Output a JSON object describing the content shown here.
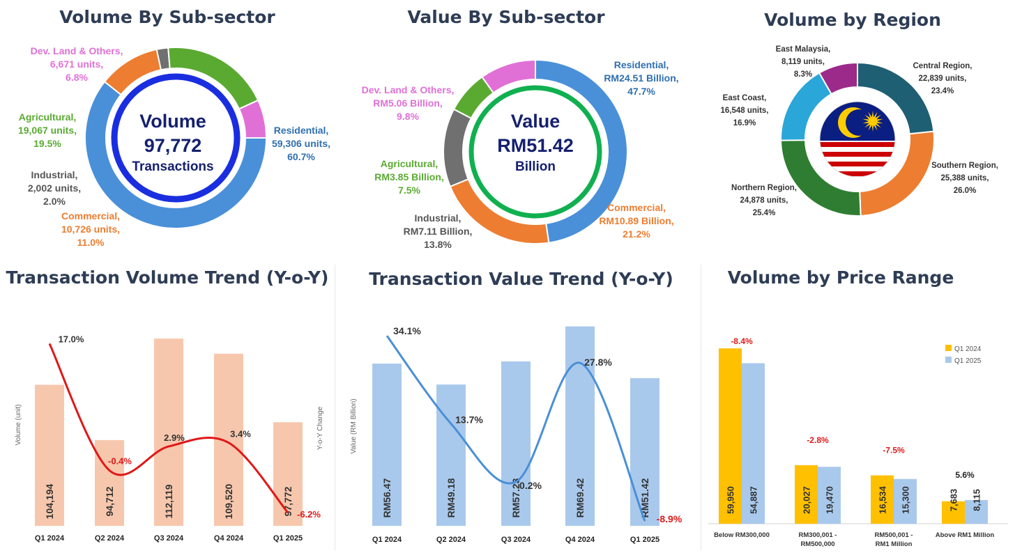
{
  "colors": {
    "title": "#2e3d55",
    "residential": "#4a90d9",
    "commercial": "#ed7d31",
    "industrial": "#707070",
    "agricultural": "#5aaa32",
    "devland": "#e070d6",
    "residential_text": "#2f6fb0",
    "volume_bar": "#f7c7ad",
    "volume_line": "#e01818",
    "value_bar": "#a9c9ec",
    "value_line": "#4a8fd6",
    "q1_2024": "#ffc000",
    "q1_2025": "#a9c9ec",
    "negative": "#e01818",
    "central": "#1f5f73",
    "southern": "#ed7d31",
    "northern": "#2f7d32",
    "east_coast": "#2aa6d9",
    "east_malaysia": "#9c2a8a"
  },
  "chart_data": [
    {
      "id": "volume_by_subsector",
      "type": "pie",
      "title": "Volume By Sub-sector",
      "center": {
        "line1": "Volume",
        "line2": "97,772",
        "line3": "Transactions"
      },
      "slices": [
        {
          "name": "Residential,",
          "value": 59306,
          "value_label": "59,306 units,",
          "pct": "60.7%"
        },
        {
          "name": "Commercial,",
          "value": 10726,
          "value_label": "10,726 units,",
          "pct": "11.0%"
        },
        {
          "name": "Industrial,",
          "value": 2002,
          "value_label": "2,002 units,",
          "pct": "2.0%"
        },
        {
          "name": "Agricultural,",
          "value": 19067,
          "value_label": "19,067 units,",
          "pct": "19.5%"
        },
        {
          "name": "Dev. Land & Others,",
          "value": 6671,
          "value_label": "6,671 units,",
          "pct": "6.8%"
        }
      ]
    },
    {
      "id": "value_by_subsector",
      "type": "pie",
      "title": "Value By Sub-sector",
      "center": {
        "line1": "Value",
        "line2": "RM51.42",
        "line3": "Billion"
      },
      "slices": [
        {
          "name": "Residential,",
          "value": 24.51,
          "value_label": "RM24.51 Billion,",
          "pct": "47.7%"
        },
        {
          "name": "Commercial,",
          "value": 10.89,
          "value_label": "RM10.89 Billion,",
          "pct": "21.2%"
        },
        {
          "name": "Industrial,",
          "value": 7.11,
          "value_label": "RM7.11 Billion,",
          "pct": "13.8%"
        },
        {
          "name": "Agricultural,",
          "value": 3.85,
          "value_label": "RM3.85 Billion,",
          "pct": "7.5%"
        },
        {
          "name": "Dev. Land & Others,",
          "value": 5.06,
          "value_label": "RM5.06 Billion,",
          "pct": "9.8%"
        }
      ]
    },
    {
      "id": "volume_by_region",
      "type": "pie",
      "title": "Volume by Region",
      "slices": [
        {
          "name": "Central Region,",
          "value": 22839,
          "value_label": "22,839 units,",
          "pct": "23.4%"
        },
        {
          "name": "Southern Region,",
          "value": 25388,
          "value_label": "25,388 units,",
          "pct": "26.0%"
        },
        {
          "name": "Northern Region,",
          "value": 24878,
          "value_label": "24,878 units,",
          "pct": "25.4%"
        },
        {
          "name": "East Coast,",
          "value": 16548,
          "value_label": "16,548 units,",
          "pct": "16.9%"
        },
        {
          "name": "East Malaysia,",
          "value": 8119,
          "value_label": "8,119 units,",
          "pct": "8.3%"
        }
      ]
    },
    {
      "id": "transaction_volume_trend",
      "type": "bar",
      "title": "Transaction Volume Trend (Y-o-Y)",
      "ylabel": "Volume (unit)",
      "y2label": "Y-o-Y Change",
      "categories": [
        "Q1 2024",
        "Q2 2024",
        "Q3 2024",
        "Q4 2024",
        "Q1 2025"
      ],
      "values": [
        104194,
        94712,
        112119,
        109520,
        97772
      ],
      "value_labels": [
        "104,194",
        "94,712",
        "112,119",
        "109,520",
        "97,772"
      ],
      "ylim": [
        80000,
        115000
      ],
      "line": {
        "values": [
          17.0,
          -0.4,
          2.9,
          3.4,
          -6.2
        ],
        "labels": [
          "17.0%",
          "-0.4%",
          "2.9%",
          "3.4%",
          "-6.2%"
        ],
        "ylim": [
          -8,
          20
        ]
      }
    },
    {
      "id": "transaction_value_trend",
      "type": "bar",
      "title": "Transaction Value Trend (Y-o-Y)",
      "ylabel": "Value (RM Billion)",
      "categories": [
        "Q1 2024",
        "Q2 2024",
        "Q3 2024",
        "Q4 2024",
        "Q1 2025"
      ],
      "values": [
        56.47,
        49.18,
        57.23,
        69.42,
        51.42
      ],
      "value_labels": [
        "RM56.47",
        "RM49.18",
        "RM57.23",
        "RM69.42",
        "RM51.42"
      ],
      "ylim": [
        0,
        72
      ],
      "line": {
        "values": [
          34.1,
          13.7,
          0.2,
          27.8,
          -8.9
        ],
        "labels": [
          "34.1%",
          "13.7%",
          "0.2%",
          "27.8%",
          "-8.9%"
        ],
        "ylim": [
          -10,
          38
        ]
      }
    },
    {
      "id": "volume_by_price_range",
      "type": "bar",
      "title": "Volume by Price Range",
      "ylabel": "Y-o-Y Change",
      "categories": [
        "Below RM300,000",
        "RM300,001 - RM500,000",
        "RM500,001 - RM1 Million",
        "Above RM1 Million"
      ],
      "series": [
        {
          "name": "Q1 2024",
          "values": [
            59950,
            20027,
            16534,
            7683
          ],
          "value_labels": [
            "59,950",
            "20,027",
            "16,534",
            "7,683"
          ]
        },
        {
          "name": "Q1 2025",
          "values": [
            54887,
            19470,
            15300,
            8115
          ],
          "value_labels": [
            "54,887",
            "19,470",
            "15,300",
            "8,115"
          ]
        }
      ],
      "changes": [
        "-8.4%",
        "-2.8%",
        "-7.5%",
        "5.6%"
      ],
      "ylim": [
        0,
        65000
      ],
      "legend": "top-right"
    }
  ]
}
